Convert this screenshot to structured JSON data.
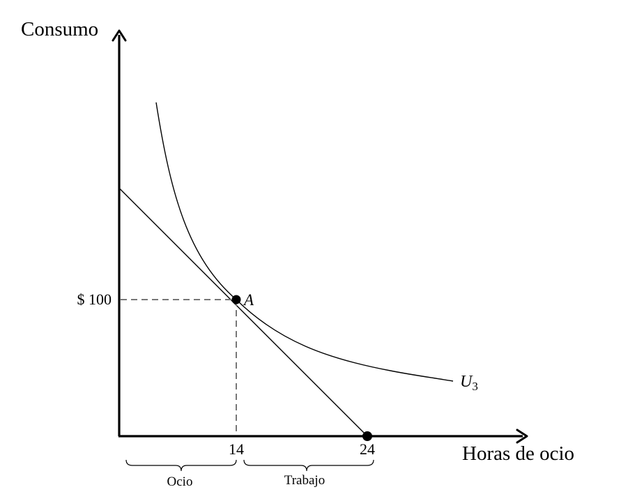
{
  "axes": {
    "y_label": "Consumo",
    "x_label": "Horas de ocio"
  },
  "ticks": {
    "y_value": "$ 100",
    "x_a": "14",
    "x_b": "24"
  },
  "points": {
    "a_label": "A"
  },
  "curve": {
    "label_main": "U",
    "label_sub": "3"
  },
  "braces": {
    "left_label": "Ocio",
    "right_label": "Trabajo"
  }
}
